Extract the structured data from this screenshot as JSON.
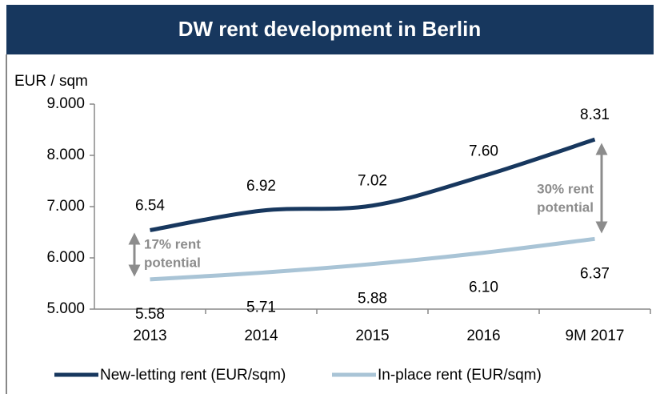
{
  "chart_data": {
    "type": "line",
    "title": "DW rent development in Berlin",
    "y_axis_label": "EUR / sqm",
    "categories": [
      "2013",
      "2014",
      "2015",
      "2016",
      "9M 2017"
    ],
    "series": [
      {
        "name": "New-letting rent (EUR/sqm)",
        "color": "#17375e",
        "values": [
          6.54,
          6.92,
          7.02,
          7.6,
          8.31
        ],
        "value_labels": [
          "6.54",
          "6.92",
          "7.02",
          "7.60",
          "8.31"
        ]
      },
      {
        "name": "In-place rent (EUR/sqm)",
        "color": "#a9c4d6",
        "values": [
          5.58,
          5.71,
          5.88,
          6.1,
          6.37
        ],
        "value_labels": [
          "5.58",
          "5.71",
          "5.88",
          "6.10",
          "6.37"
        ]
      }
    ],
    "ylim": [
      5,
      9
    ],
    "yticks": [
      {
        "value": 5,
        "label": "5.000"
      },
      {
        "value": 6,
        "label": "6.000"
      },
      {
        "value": 7,
        "label": "7.000"
      },
      {
        "value": 8,
        "label": "8.000"
      },
      {
        "value": 9,
        "label": "9.000"
      }
    ],
    "annotations": [
      {
        "lines": [
          "17% rent",
          "potential"
        ]
      },
      {
        "lines": [
          "30% rent",
          "potential"
        ]
      }
    ],
    "grid": false
  }
}
